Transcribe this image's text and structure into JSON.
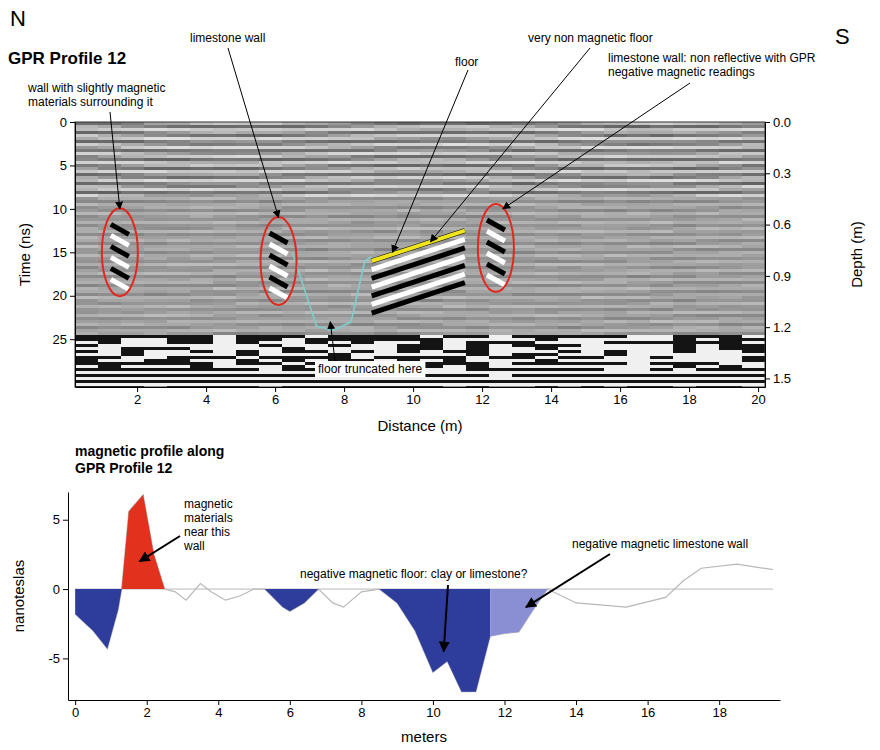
{
  "chart_data": [
    {
      "type": "radargram",
      "title": "GPR Profile 12",
      "direction_labels": [
        "N",
        "S"
      ],
      "x_label": "Distance (m)",
      "y_label": "Time (ns)",
      "y2_label": "Depth (m)",
      "xlim": [
        0.2,
        20.2
      ],
      "xticks": [
        2,
        4,
        6,
        8,
        10,
        12,
        14,
        16,
        18,
        20
      ],
      "ylim": [
        0,
        30.5
      ],
      "yticks": [
        0,
        5,
        10,
        15,
        20,
        25
      ],
      "y2lim": [
        0,
        1.55
      ],
      "y2ticks": [
        {
          "value": 0,
          "label": "0.0"
        },
        0.3,
        0.6,
        0.9,
        1.2,
        1.5
      ],
      "lines": [
        {
          "color": "#f0e41c",
          "x": [
            8.8,
            11.5
          ],
          "y": [
            16,
            12.5
          ]
        },
        {
          "color": "#7ccfcc",
          "x": [
            6.5,
            7.2,
            7.7,
            8.2,
            8.6,
            8.8
          ],
          "y": [
            15,
            23.5,
            24,
            23,
            16,
            15.5
          ]
        }
      ],
      "ellipses": [
        {
          "x": 1.5,
          "y": 15,
          "color": "#e0281e"
        },
        {
          "x": 6.1,
          "y": 16,
          "color": "#e0281e"
        },
        {
          "x": 12.4,
          "y": 14.5,
          "color": "#e0281e"
        }
      ],
      "annotations": [
        {
          "lines": [
            "wall with slightly magnetic",
            "materials surrounding it"
          ],
          "x": 1.5,
          "y": 10
        },
        {
          "lines": [
            "limestone wall"
          ],
          "x": 6.1,
          "y": 11
        },
        {
          "lines": [
            "floor"
          ],
          "x": 9.4,
          "y": 15
        },
        {
          "lines": [
            "very non magnetic floor"
          ],
          "x": 10.5,
          "y": 13.8
        },
        {
          "lines": [
            "limestone wall: non reflective with GPR",
            "negative magnetic readings"
          ],
          "x": 12.6,
          "y": 10
        },
        {
          "lines": [
            "floor truncated here"
          ],
          "x": 7.6,
          "y": 23
        }
      ]
    },
    {
      "type": "area",
      "title": [
        "magnetic profile along",
        "GPR Profile 12"
      ],
      "x_label": "meters",
      "y_label": "nanoteslas",
      "xlim": [
        -0.2,
        19.7
      ],
      "xticks": [
        0,
        2,
        4,
        6,
        8,
        10,
        12,
        14,
        16,
        18
      ],
      "ylim": [
        -8,
        7
      ],
      "yticks": [
        -5,
        0,
        5
      ],
      "color": "#b8b8b8",
      "x": [
        0,
        0.5,
        0.9,
        1.2,
        1.3,
        1.5,
        1.9,
        2.2,
        2.5,
        2.8,
        3.1,
        3.5,
        3.8,
        4.2,
        4.6,
        5.0,
        5.3,
        5.8,
        6.0,
        6.4,
        6.8,
        7.2,
        7.5,
        8.0,
        8.5,
        9.0,
        9.5,
        10.0,
        10.4,
        10.8,
        11.2,
        11.6,
        12.0,
        12.4,
        12.8,
        13.2,
        14.0,
        15.4,
        16.5,
        17.0,
        17.5,
        18.5,
        19.5
      ],
      "values": [
        -1.8,
        -3,
        -4.3,
        -1.5,
        0,
        5.6,
        6.8,
        2.5,
        0,
        -0.2,
        -0.8,
        0.4,
        -0.2,
        -0.8,
        -0.5,
        0,
        0,
        -1.3,
        -1.6,
        -1,
        0,
        -1,
        -1.3,
        -0.2,
        0,
        -1,
        -3,
        -6,
        -5.2,
        -7.4,
        -7.4,
        -3.4,
        -3.2,
        -3.1,
        -1.5,
        0,
        -1,
        -1.3,
        -0.6,
        0.6,
        1.5,
        1.8,
        1.4
      ],
      "fills": [
        {
          "from": 0,
          "to": 1.3,
          "color": "#2e3d9c"
        },
        {
          "from": 1.3,
          "to": 2.5,
          "color": "#e2311d"
        },
        {
          "from": 5.3,
          "to": 6.8,
          "color": "#2e3d9c"
        },
        {
          "from": 8.5,
          "to": 11.6,
          "color": "#2e3d9c"
        },
        {
          "from": 11.6,
          "to": 13.2,
          "color": "#8a8fd4"
        }
      ],
      "annotations": [
        {
          "lines": [
            "magnetic",
            "materials",
            "near this",
            "wall"
          ],
          "x": 1.8,
          "y": 2
        },
        {
          "lines": [
            "negative magnetic floor: clay or limestone?"
          ],
          "x": 10.3,
          "y": -4.5
        },
        {
          "lines": [
            "negative magnetic limestone wall"
          ],
          "x": 12.6,
          "y": -1.3
        }
      ]
    }
  ]
}
